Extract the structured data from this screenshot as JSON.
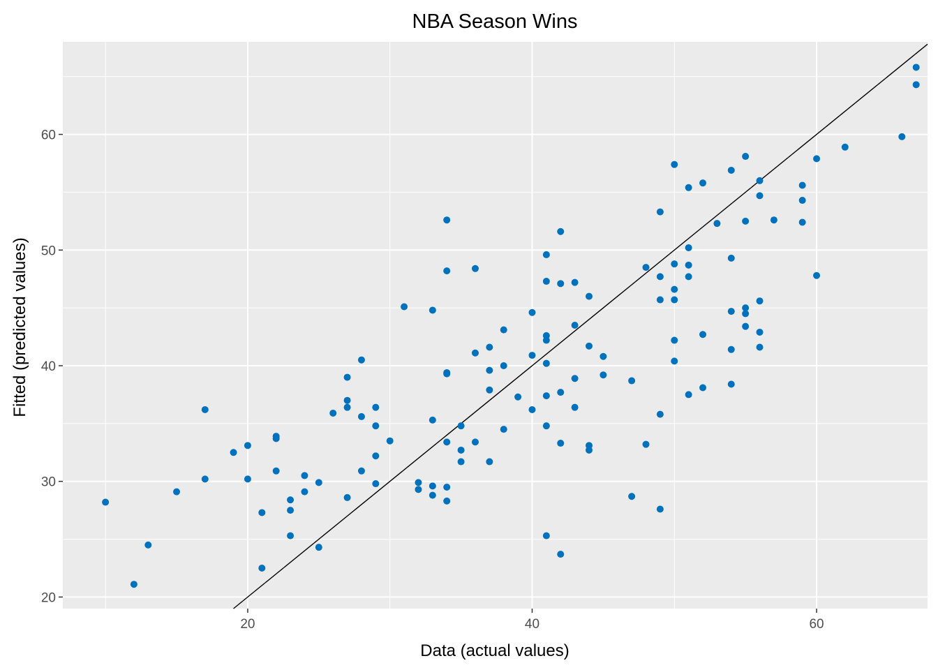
{
  "chart_data": {
    "type": "scatter",
    "title": "NBA Season Wins",
    "xlabel": "Data (actual values)",
    "ylabel": "Fitted (predicted values)",
    "xlim": [
      7,
      67.8
    ],
    "ylim": [
      19,
      68
    ],
    "x_ticks": [
      20,
      40,
      60
    ],
    "y_ticks": [
      20,
      30,
      40,
      50,
      60
    ],
    "x_tick_labels": [
      "20",
      "40",
      "60"
    ],
    "y_tick_labels": [
      "20",
      "30",
      "40",
      "50",
      "60"
    ],
    "grid": true,
    "background": "#ebebeb",
    "point_color": "#0072bd",
    "reference_line": {
      "slope": 1,
      "intercept": 0,
      "color": "#000000"
    },
    "points": [
      [
        10,
        28.2
      ],
      [
        12,
        21.1
      ],
      [
        13,
        24.5
      ],
      [
        15,
        29.1
      ],
      [
        17,
        36.2
      ],
      [
        17,
        30.2
      ],
      [
        19,
        32.5
      ],
      [
        20,
        33.1
      ],
      [
        20,
        30.2
      ],
      [
        21,
        27.3
      ],
      [
        21,
        22.5
      ],
      [
        22,
        33.9
      ],
      [
        22,
        33.7
      ],
      [
        22,
        30.9
      ],
      [
        23,
        28.4
      ],
      [
        23,
        27.5
      ],
      [
        23,
        25.3
      ],
      [
        24,
        30.5
      ],
      [
        24,
        29.1
      ],
      [
        25,
        29.9
      ],
      [
        25,
        24.3
      ],
      [
        26,
        35.9
      ],
      [
        27,
        39.0
      ],
      [
        27,
        37.0
      ],
      [
        27,
        36.4
      ],
      [
        27,
        28.6
      ],
      [
        28,
        40.5
      ],
      [
        28,
        35.6
      ],
      [
        28,
        30.9
      ],
      [
        29,
        36.4
      ],
      [
        29,
        34.8
      ],
      [
        29,
        32.2
      ],
      [
        29,
        29.8
      ],
      [
        30,
        33.5
      ],
      [
        31,
        45.1
      ],
      [
        32,
        29.9
      ],
      [
        32,
        29.3
      ],
      [
        33,
        44.8
      ],
      [
        33,
        35.3
      ],
      [
        33,
        29.6
      ],
      [
        33,
        28.8
      ],
      [
        34,
        52.6
      ],
      [
        34,
        48.2
      ],
      [
        34,
        39.4
      ],
      [
        34,
        39.3
      ],
      [
        34,
        33.4
      ],
      [
        34,
        29.5
      ],
      [
        34,
        28.3
      ],
      [
        35,
        34.8
      ],
      [
        35,
        32.7
      ],
      [
        35,
        31.7
      ],
      [
        36,
        48.4
      ],
      [
        36,
        41.1
      ],
      [
        36,
        33.4
      ],
      [
        37,
        41.6
      ],
      [
        37,
        39.6
      ],
      [
        37,
        37.9
      ],
      [
        37,
        31.7
      ],
      [
        38,
        43.1
      ],
      [
        38,
        40.0
      ],
      [
        38,
        34.5
      ],
      [
        39,
        37.3
      ],
      [
        40,
        44.6
      ],
      [
        40,
        40.9
      ],
      [
        40,
        36.2
      ],
      [
        41,
        49.6
      ],
      [
        41,
        47.3
      ],
      [
        41,
        42.6
      ],
      [
        41,
        42.2
      ],
      [
        41,
        40.2
      ],
      [
        41,
        37.4
      ],
      [
        41,
        34.8
      ],
      [
        41,
        25.3
      ],
      [
        42,
        51.6
      ],
      [
        42,
        47.1
      ],
      [
        42,
        37.7
      ],
      [
        42,
        33.3
      ],
      [
        42,
        23.7
      ],
      [
        43,
        47.2
      ],
      [
        43,
        43.5
      ],
      [
        43,
        38.9
      ],
      [
        43,
        36.4
      ],
      [
        44,
        46.0
      ],
      [
        44,
        41.7
      ],
      [
        44,
        33.1
      ],
      [
        44,
        32.7
      ],
      [
        45,
        40.8
      ],
      [
        45,
        39.2
      ],
      [
        47,
        38.7
      ],
      [
        47,
        28.7
      ],
      [
        48,
        48.5
      ],
      [
        48,
        33.2
      ],
      [
        49,
        53.3
      ],
      [
        49,
        47.7
      ],
      [
        49,
        45.7
      ],
      [
        49,
        35.8
      ],
      [
        49,
        27.6
      ],
      [
        50,
        57.4
      ],
      [
        50,
        48.8
      ],
      [
        50,
        46.6
      ],
      [
        50,
        45.7
      ],
      [
        50,
        42.2
      ],
      [
        50,
        40.4
      ],
      [
        51,
        55.4
      ],
      [
        51,
        50.2
      ],
      [
        51,
        48.7
      ],
      [
        51,
        47.7
      ],
      [
        51,
        37.5
      ],
      [
        52,
        55.8
      ],
      [
        52,
        42.7
      ],
      [
        52,
        38.1
      ],
      [
        53,
        52.3
      ],
      [
        54,
        56.9
      ],
      [
        54,
        49.3
      ],
      [
        54,
        44.7
      ],
      [
        54,
        41.4
      ],
      [
        54,
        38.4
      ],
      [
        55,
        58.1
      ],
      [
        55,
        52.5
      ],
      [
        55,
        45.0
      ],
      [
        55,
        44.5
      ],
      [
        55,
        43.4
      ],
      [
        56,
        56.0
      ],
      [
        56,
        54.7
      ],
      [
        56,
        45.6
      ],
      [
        56,
        42.9
      ],
      [
        56,
        41.6
      ],
      [
        57,
        52.6
      ],
      [
        59,
        55.6
      ],
      [
        59,
        54.3
      ],
      [
        59,
        52.4
      ],
      [
        60,
        57.9
      ],
      [
        60,
        47.8
      ],
      [
        62,
        58.9
      ],
      [
        66,
        59.8
      ],
      [
        67,
        65.8
      ],
      [
        67,
        64.3
      ]
    ]
  }
}
